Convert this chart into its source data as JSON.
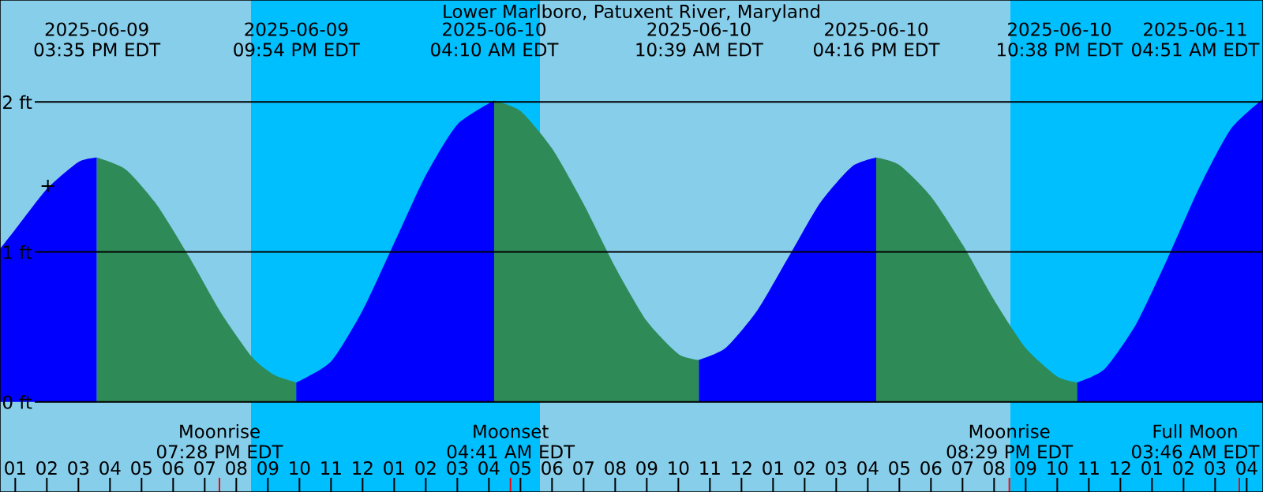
{
  "chart_data": {
    "type": "area",
    "title": "Lower Marlboro, Patuxent River, Maryland",
    "xlim": [
      "2025-06-09T12:31",
      "2025-06-11T04:31"
    ],
    "ylim": [
      -0.6,
      2.68
    ],
    "grid": "y",
    "xticks": [
      {
        "value": "2025-06-09T13:00",
        "label": "01"
      },
      {
        "value": "2025-06-09T14:00",
        "label": "02"
      },
      {
        "value": "2025-06-09T15:00",
        "label": "03"
      },
      {
        "value": "2025-06-09T16:00",
        "label": "04"
      },
      {
        "value": "2025-06-09T17:00",
        "label": "05"
      },
      {
        "value": "2025-06-09T18:00",
        "label": "06"
      },
      {
        "value": "2025-06-09T19:00",
        "label": "07"
      },
      {
        "value": "2025-06-09T20:00",
        "label": "08"
      },
      {
        "value": "2025-06-09T21:00",
        "label": "09"
      },
      {
        "value": "2025-06-09T22:00",
        "label": "10"
      },
      {
        "value": "2025-06-09T23:00",
        "label": "11"
      },
      {
        "value": "2025-06-10T00:00",
        "label": "12"
      },
      {
        "value": "2025-06-10T01:00",
        "label": "01"
      },
      {
        "value": "2025-06-10T02:00",
        "label": "02"
      },
      {
        "value": "2025-06-10T03:00",
        "label": "03"
      },
      {
        "value": "2025-06-10T04:00",
        "label": "04"
      },
      {
        "value": "2025-06-10T05:00",
        "label": "05"
      },
      {
        "value": "2025-06-10T06:00",
        "label": "06"
      },
      {
        "value": "2025-06-10T07:00",
        "label": "07"
      },
      {
        "value": "2025-06-10T08:00",
        "label": "08"
      },
      {
        "value": "2025-06-10T09:00",
        "label": "09"
      },
      {
        "value": "2025-06-10T10:00",
        "label": "10"
      },
      {
        "value": "2025-06-10T11:00",
        "label": "11"
      },
      {
        "value": "2025-06-10T12:00",
        "label": "12"
      },
      {
        "value": "2025-06-10T13:00",
        "label": "01"
      },
      {
        "value": "2025-06-10T14:00",
        "label": "02"
      },
      {
        "value": "2025-06-10T15:00",
        "label": "03"
      },
      {
        "value": "2025-06-10T16:00",
        "label": "04"
      },
      {
        "value": "2025-06-10T17:00",
        "label": "05"
      },
      {
        "value": "2025-06-10T18:00",
        "label": "06"
      },
      {
        "value": "2025-06-10T19:00",
        "label": "07"
      },
      {
        "value": "2025-06-10T20:00",
        "label": "08"
      },
      {
        "value": "2025-06-10T21:00",
        "label": "09"
      },
      {
        "value": "2025-06-10T22:00",
        "label": "10"
      },
      {
        "value": "2025-06-10T23:00",
        "label": "11"
      },
      {
        "value": "2025-06-11T00:00",
        "label": "12"
      },
      {
        "value": "2025-06-11T01:00",
        "label": "01"
      },
      {
        "value": "2025-06-11T02:00",
        "label": "02"
      },
      {
        "value": "2025-06-11T03:00",
        "label": "03"
      },
      {
        "value": "2025-06-11T04:00",
        "label": "04"
      }
    ],
    "yticks": [
      {
        "value": 0,
        "label": "0 ft"
      },
      {
        "value": 1,
        "label": "1 ft"
      },
      {
        "value": 2,
        "label": "2 ft"
      }
    ],
    "bands": [
      {
        "axis": "x",
        "from": "2025-06-09T12:31",
        "to": "2025-06-09T20:28",
        "color": "#87ceeb"
      },
      {
        "axis": "x",
        "from": "2025-06-09T20:28",
        "to": "2025-06-10T05:37",
        "color": "#00bfff"
      },
      {
        "axis": "x",
        "from": "2025-06-10T05:37",
        "to": "2025-06-10T20:31",
        "color": "#87ceeb"
      },
      {
        "axis": "x",
        "from": "2025-06-10T20:31",
        "to": "2025-06-11T04:31",
        "color": "#00bfff"
      }
    ],
    "series": [
      {
        "color": "#0000ff",
        "x": [
          "2025-06-09T12:31",
          "2025-06-09T13:00",
          "2025-06-09T14:00",
          "2025-06-09T15:00",
          "2025-06-09T15:35"
        ],
        "values": [
          1.02,
          1.15,
          1.42,
          1.6,
          1.63
        ]
      },
      {
        "color": "#2e8b57",
        "x": [
          "2025-06-09T15:35",
          "2025-06-09T16:30",
          "2025-06-09T17:30",
          "2025-06-09T18:30",
          "2025-06-09T19:30",
          "2025-06-09T20:30",
          "2025-06-09T21:12",
          "2025-06-09T21:54"
        ],
        "values": [
          1.63,
          1.55,
          1.31,
          0.97,
          0.6,
          0.3,
          0.18,
          0.13
        ]
      },
      {
        "color": "#0000ff",
        "x": [
          "2025-06-09T21:54",
          "2025-06-09T23:00",
          "2025-06-10T00:00",
          "2025-06-10T01:00",
          "2025-06-10T02:00",
          "2025-06-10T03:00",
          "2025-06-10T04:10"
        ],
        "values": [
          0.13,
          0.27,
          0.61,
          1.06,
          1.51,
          1.85,
          2.01
        ]
      },
      {
        "color": "#2e8b57",
        "x": [
          "2025-06-10T04:10",
          "2025-06-10T05:00",
          "2025-06-10T06:00",
          "2025-06-10T07:00",
          "2025-06-10T08:00",
          "2025-06-10T09:00",
          "2025-06-10T10:00",
          "2025-06-10T10:39"
        ],
        "values": [
          2.01,
          1.94,
          1.69,
          1.32,
          0.9,
          0.54,
          0.32,
          0.28
        ]
      },
      {
        "color": "#0000ff",
        "x": [
          "2025-06-10T10:39",
          "2025-06-10T11:30",
          "2025-06-10T12:30",
          "2025-06-10T13:30",
          "2025-06-10T14:30",
          "2025-06-10T15:30",
          "2025-06-10T16:16"
        ],
        "values": [
          0.28,
          0.36,
          0.61,
          0.97,
          1.33,
          1.57,
          1.63
        ]
      },
      {
        "color": "#2e8b57",
        "x": [
          "2025-06-10T16:16",
          "2025-06-10T17:00",
          "2025-06-10T18:00",
          "2025-06-10T19:00",
          "2025-06-10T20:00",
          "2025-06-10T21:00",
          "2025-06-10T22:00",
          "2025-06-10T22:38"
        ],
        "values": [
          1.63,
          1.58,
          1.37,
          1.05,
          0.68,
          0.36,
          0.17,
          0.13
        ]
      },
      {
        "color": "#0000ff",
        "x": [
          "2025-06-10T22:38",
          "2025-06-10T23:30",
          "2025-06-11T00:30",
          "2025-06-11T01:30",
          "2025-06-11T02:30",
          "2025-06-11T03:30",
          "2025-06-11T04:31"
        ],
        "values": [
          0.13,
          0.22,
          0.52,
          0.96,
          1.43,
          1.82,
          2.02
        ]
      },
      {
        "type": "scatter",
        "marker": "cross",
        "color": "#000000",
        "x": [
          "2025-06-09T14:02"
        ],
        "values": [
          1.44
        ]
      }
    ],
    "ref_lines": [
      {
        "axis": "x",
        "value": "2025-06-09T19:28",
        "label": "Moonrise 07:28 PM EDT",
        "color": "#ff0000"
      },
      {
        "axis": "x",
        "value": "2025-06-10T04:41",
        "label": "Moonset 04:41 AM EDT",
        "color": "#ff0000"
      },
      {
        "axis": "x",
        "value": "2025-06-10T20:29",
        "label": "Moonrise 08:29 PM EDT",
        "color": "#ff0000"
      },
      {
        "axis": "x",
        "value": "2025-06-11T03:46",
        "label": "Full Moon 03:46 AM EDT",
        "color": "#ff0000"
      }
    ],
    "annotations": [
      "2025-06-09 03:35 PM EDT",
      "2025-06-09 09:54 PM EDT",
      "2025-06-10 04:10 AM EDT",
      "2025-06-10 10:39 AM EDT",
      "2025-06-10 04:16 PM EDT",
      "2025-06-10 10:38 PM EDT",
      "2025-06-11 04:51 AM EDT"
    ]
  }
}
